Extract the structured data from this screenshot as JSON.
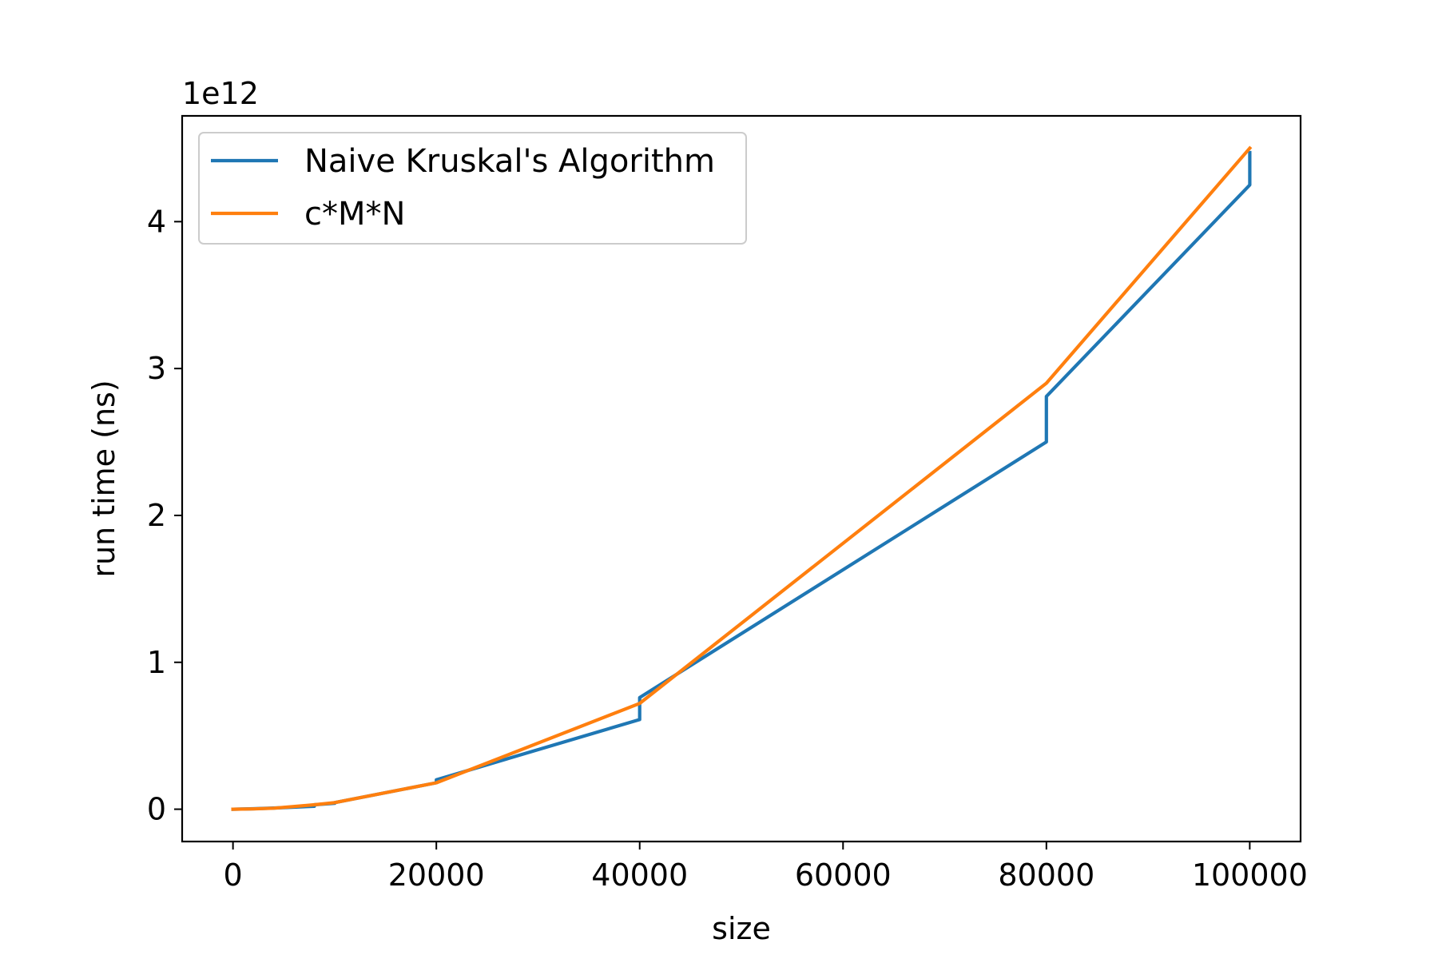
{
  "chart_data": {
    "type": "line",
    "title": "",
    "xlabel": "size",
    "ylabel": "run time (ns)",
    "y_offset_label": "1e12",
    "xlim": [
      -5000,
      105000
    ],
    "ylim": [
      -0.22,
      4.72
    ],
    "x_ticks": [
      0,
      20000,
      40000,
      60000,
      80000,
      100000
    ],
    "x_tick_labels": [
      "0",
      "20000",
      "40000",
      "60000",
      "80000",
      "100000"
    ],
    "y_ticks": [
      0,
      1,
      2,
      3,
      4
    ],
    "y_tick_labels": [
      "0",
      "1",
      "2",
      "3",
      "4"
    ],
    "grid": false,
    "legend_position": "upper-left",
    "series": [
      {
        "name": "Naive Kruskal's Algorithm",
        "color": "#1f77b4",
        "x": [
          0,
          2000,
          4000,
          8000,
          8000,
          10000,
          10000,
          20000,
          20000,
          40000,
          40000,
          80000,
          80000,
          100000,
          100000
        ],
        "y": [
          0,
          0.003,
          0.008,
          0.02,
          0.03,
          0.04,
          0.045,
          0.18,
          0.2,
          0.61,
          0.76,
          2.5,
          2.81,
          4.25,
          4.47
        ]
      },
      {
        "name": "c*M*N",
        "color": "#ff7f0e",
        "x": [
          0,
          2000,
          4000,
          8000,
          10000,
          20000,
          40000,
          80000,
          100000
        ],
        "y": [
          0,
          0.002,
          0.007,
          0.03,
          0.045,
          0.18,
          0.72,
          2.9,
          4.5
        ]
      }
    ]
  }
}
